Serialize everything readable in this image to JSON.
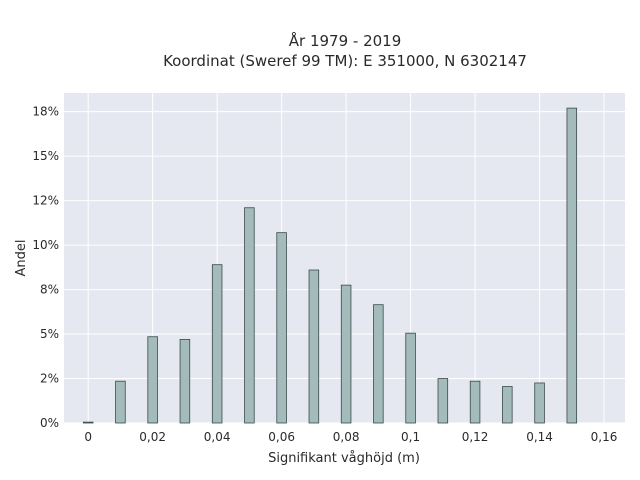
{
  "chart_data": {
    "type": "bar",
    "title_line1": "År 1979 - 2019",
    "title_line2": "Koordinat (Sweref 99 TM): E 351000, N 6302147",
    "xlabel": "Signifikant våghöjd (m)",
    "ylabel": "Andel",
    "x": [
      0,
      0.01,
      0.02,
      0.03,
      0.04,
      0.05,
      0.06,
      0.07,
      0.08,
      0.09,
      0.1,
      0.11,
      0.12,
      0.13,
      0.14,
      0.15
    ],
    "values": [
      0.05,
      2.35,
      4.85,
      4.7,
      8.9,
      12.1,
      10.7,
      8.6,
      7.75,
      6.65,
      5.05,
      2.5,
      2.35,
      2.05,
      2.25,
      17.7
    ],
    "xlim": [
      -0.0075,
      0.1665
    ],
    "ylim": [
      0,
      18.55
    ],
    "x_ticks": [
      0,
      0.02,
      0.04,
      0.06,
      0.08,
      0.1,
      0.12,
      0.14,
      0.16
    ],
    "x_tick_labels": [
      "0",
      "0,02",
      "0,04",
      "0,06",
      "0,08",
      "0,1",
      "0,12",
      "0,14",
      "0,16"
    ],
    "y_ticks": [
      0,
      2.5,
      5,
      7.5,
      10,
      12.5,
      15,
      17.5
    ],
    "y_tick_labels": [
      "0%",
      "2%",
      "5%",
      "8%",
      "10%",
      "12%",
      "15%",
      "18%"
    ],
    "grid": true,
    "colors": {
      "plot_bg": "#e5e8f0",
      "grid": "#ffffff",
      "bar_fill": "#a3bbbb",
      "bar_stroke": "#3a4a4a"
    }
  }
}
